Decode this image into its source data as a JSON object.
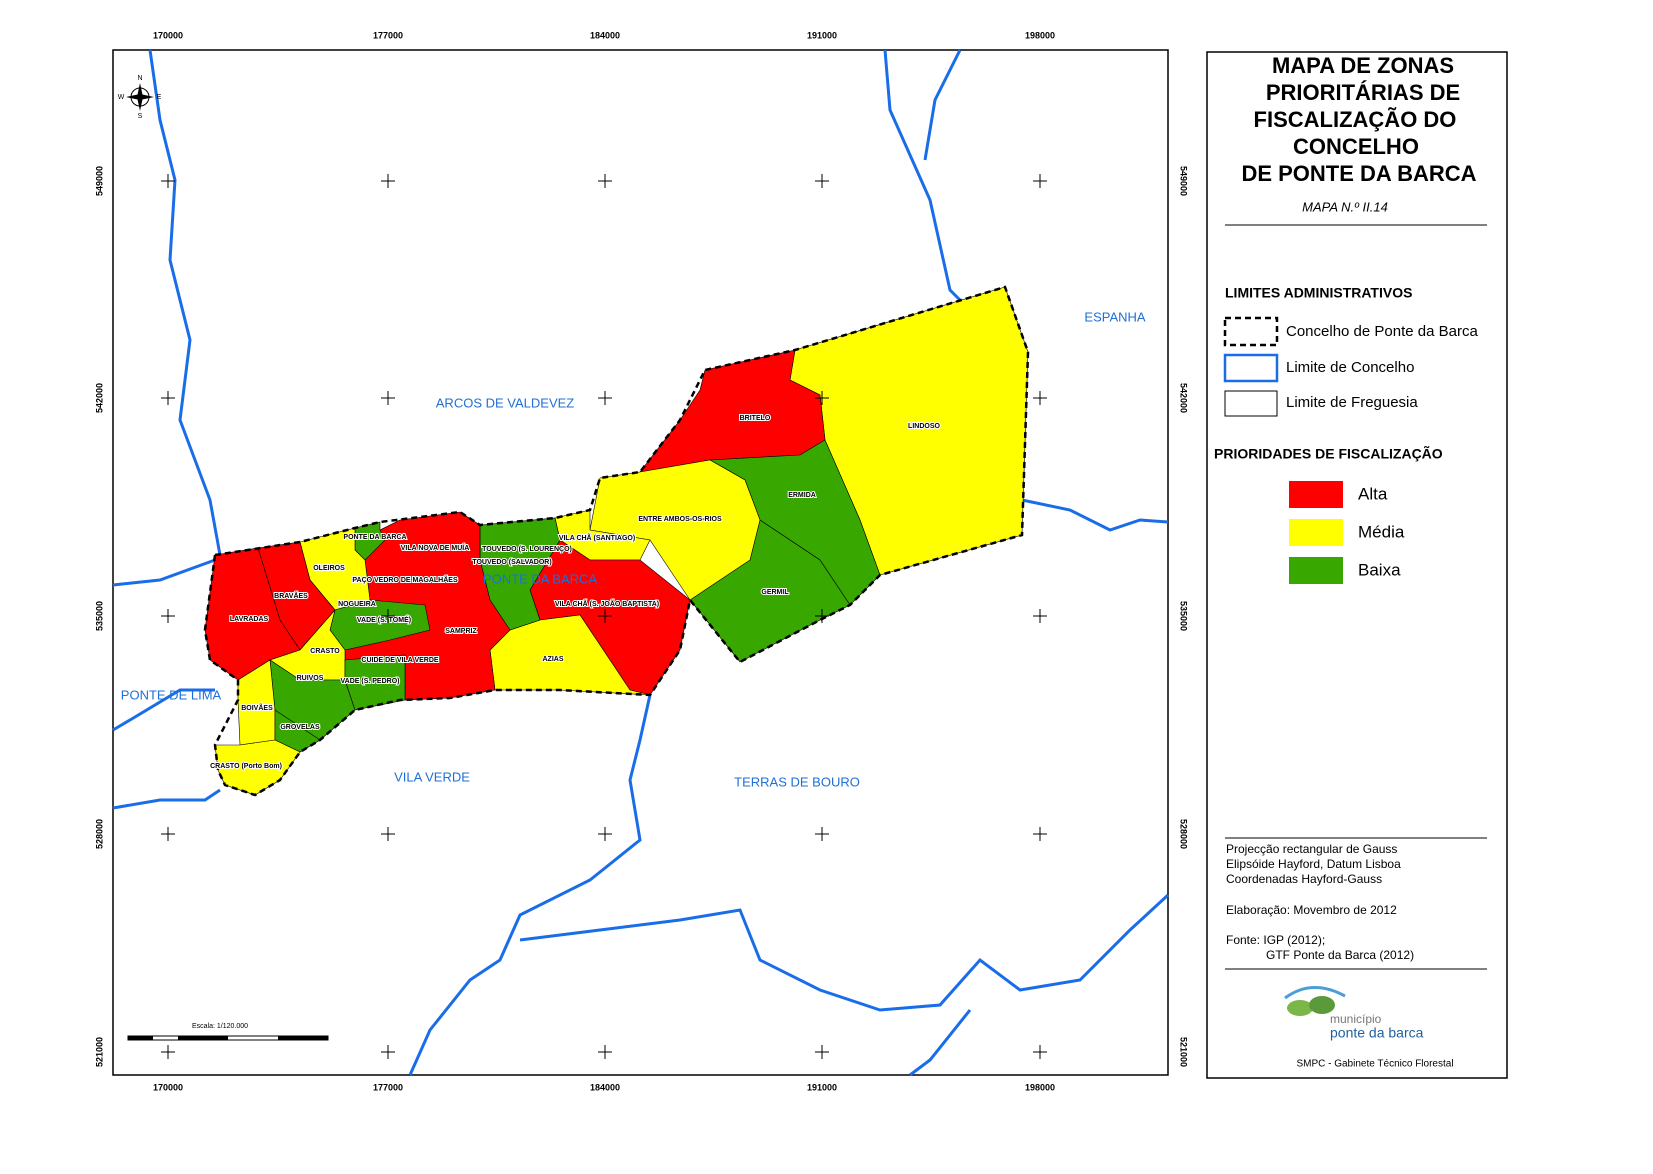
{
  "map": {
    "x_ticks": [
      "170000",
      "177000",
      "184000",
      "191000",
      "198000"
    ],
    "y_ticks": [
      "549000",
      "542000",
      "535000",
      "528000",
      "521000"
    ],
    "north_arrow": [
      "N",
      "E",
      "S",
      "W"
    ],
    "region_labels": [
      "ARCOS DE VALDEVEZ",
      "ESPANHA",
      "PONTE DE LIMA",
      "VILA VERDE",
      "TERRAS DE BOURO",
      "PONTE DA BARCA"
    ],
    "parish_labels": [
      "BRITELO",
      "LINDOSO",
      "ERMIDA",
      "ENTRE AMBOS-OS-RIOS",
      "VILA CHÃ (SANTIAGO)",
      "GERMIL",
      "TOUVEDO (S. LOURENÇO)",
      "TOUVEDO (SALVADOR)",
      "VILA CHÃ (S. JOÃO BAPTISTA)",
      "AZIAS",
      "PONTE DA BARCA",
      "VILA NOVA DE MUÍA",
      "PAÇO VEDRO DE MAGALHÃES",
      "OLEIROS",
      "BRAVÃES",
      "NOGUEIRA",
      "LAVRADAS",
      "VADE (S. TOMÉ)",
      "SAMPRIZ",
      "CRASTO",
      "CUIDE DE VILA VERDE",
      "RUIVOS",
      "VADE (S. PEDRO)",
      "BOIVÃES",
      "GROVELAS",
      "CRASTO (Porto Bom)"
    ],
    "scale": "Escala: 1/120.000"
  },
  "legend": {
    "title": [
      "MAPA DE ZONAS",
      "PRIORITÁRIAS DE",
      "FISCALIZAÇÃO DO",
      "CONCELHO",
      "DE PONTE DA BARCA"
    ],
    "map_number": "MAPA N.º II.14",
    "admin_title": "LIMITES ADMINISTRATIVOS",
    "admin_items": [
      "Concelho de Ponte da Barca",
      "Limite de Concelho",
      "Limite de Freguesia"
    ],
    "priority_title": "PRIORIDADES DE FISCALIZAÇÃO",
    "priority_items": [
      {
        "label": "Alta",
        "color": "#ff0000"
      },
      {
        "label": "Média",
        "color": "#ffff00"
      },
      {
        "label": "Baixa",
        "color": "#38a800"
      }
    ],
    "notes": [
      "Projecção rectangular de Gauss",
      "Elipsóide Hayford, Datum Lisboa",
      "Coordenadas Hayford-Gauss",
      "Elaboração: Movembro de 2012",
      "Fonte: IGP (2012);",
      "GTF Ponte da Barca (2012)"
    ],
    "logo": [
      "município",
      "ponte da barca"
    ],
    "footer": "SMPC - Gabinete Técnico Florestal"
  }
}
